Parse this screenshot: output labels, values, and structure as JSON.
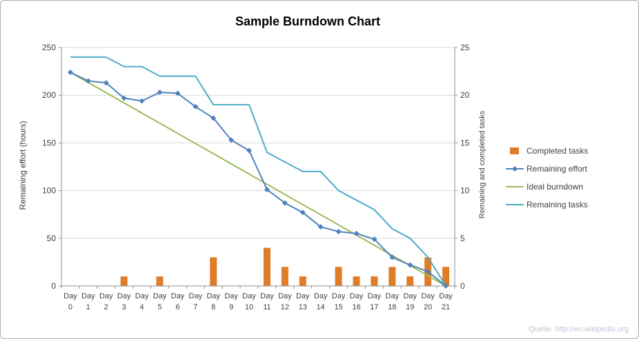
{
  "source_note": "Quelle: http://en.wikipedia.org",
  "chart_data": {
    "type": "combo",
    "title": "Sample Burndown Chart",
    "left_axis_label": "Remaining effort (hours)",
    "right_axis_label": "Remaining and completed tasks",
    "categories": [
      "Day 0",
      "Day 1",
      "Day 2",
      "Day 3",
      "Day 4",
      "Day 5",
      "Day 6",
      "Day 7",
      "Day 8",
      "Day 9",
      "Day 10",
      "Day 11",
      "Day 12",
      "Day 13",
      "Day 14",
      "Day 15",
      "Day 16",
      "Day 17",
      "Day 18",
      "Day 19",
      "Day 20",
      "Day 21"
    ],
    "series": [
      {
        "name": "Completed tasks",
        "type": "bar",
        "axis": "right",
        "color": "#E07C28",
        "values": [
          0,
          0,
          0,
          1,
          0,
          1,
          0,
          0,
          3,
          0,
          0,
          4,
          2,
          1,
          0,
          2,
          1,
          1,
          2,
          1,
          3,
          2
        ]
      },
      {
        "name": "Remaining effort",
        "type": "line",
        "marker": "diamond",
        "axis": "left",
        "color": "#4F81BD",
        "values": [
          224,
          215,
          213,
          197,
          194,
          203,
          202,
          188,
          176,
          153,
          142,
          101,
          87,
          77,
          62,
          57,
          55,
          49,
          30,
          22,
          15,
          0
        ]
      },
      {
        "name": "Ideal burndown",
        "type": "line",
        "axis": "left",
        "color": "#9BBB59",
        "values": [
          224,
          213.3,
          202.7,
          192,
          181.3,
          170.7,
          160,
          149.3,
          138.7,
          128,
          117.3,
          106.7,
          96,
          85.3,
          74.7,
          64,
          53.3,
          42.7,
          32,
          21.3,
          10.7,
          0
        ]
      },
      {
        "name": "Remaining tasks",
        "type": "line",
        "axis": "right",
        "color": "#4BACC6",
        "values": [
          24,
          24,
          24,
          23,
          23,
          22,
          22,
          22,
          19,
          19,
          19,
          14,
          13,
          12,
          12,
          10,
          9,
          8,
          6,
          5,
          3,
          0
        ]
      }
    ],
    "left_ylim": [
      0,
      250
    ],
    "right_ylim": [
      0,
      25
    ],
    "left_ticks": [
      0,
      50,
      100,
      150,
      200,
      250
    ],
    "right_ticks": [
      0,
      5,
      10,
      15,
      20,
      25
    ],
    "grid": true,
    "legend_position": "right"
  },
  "colors": {
    "gridline": "#D9D9D9",
    "axis_line": "#8C8C8C",
    "tick_text": "#404040"
  }
}
